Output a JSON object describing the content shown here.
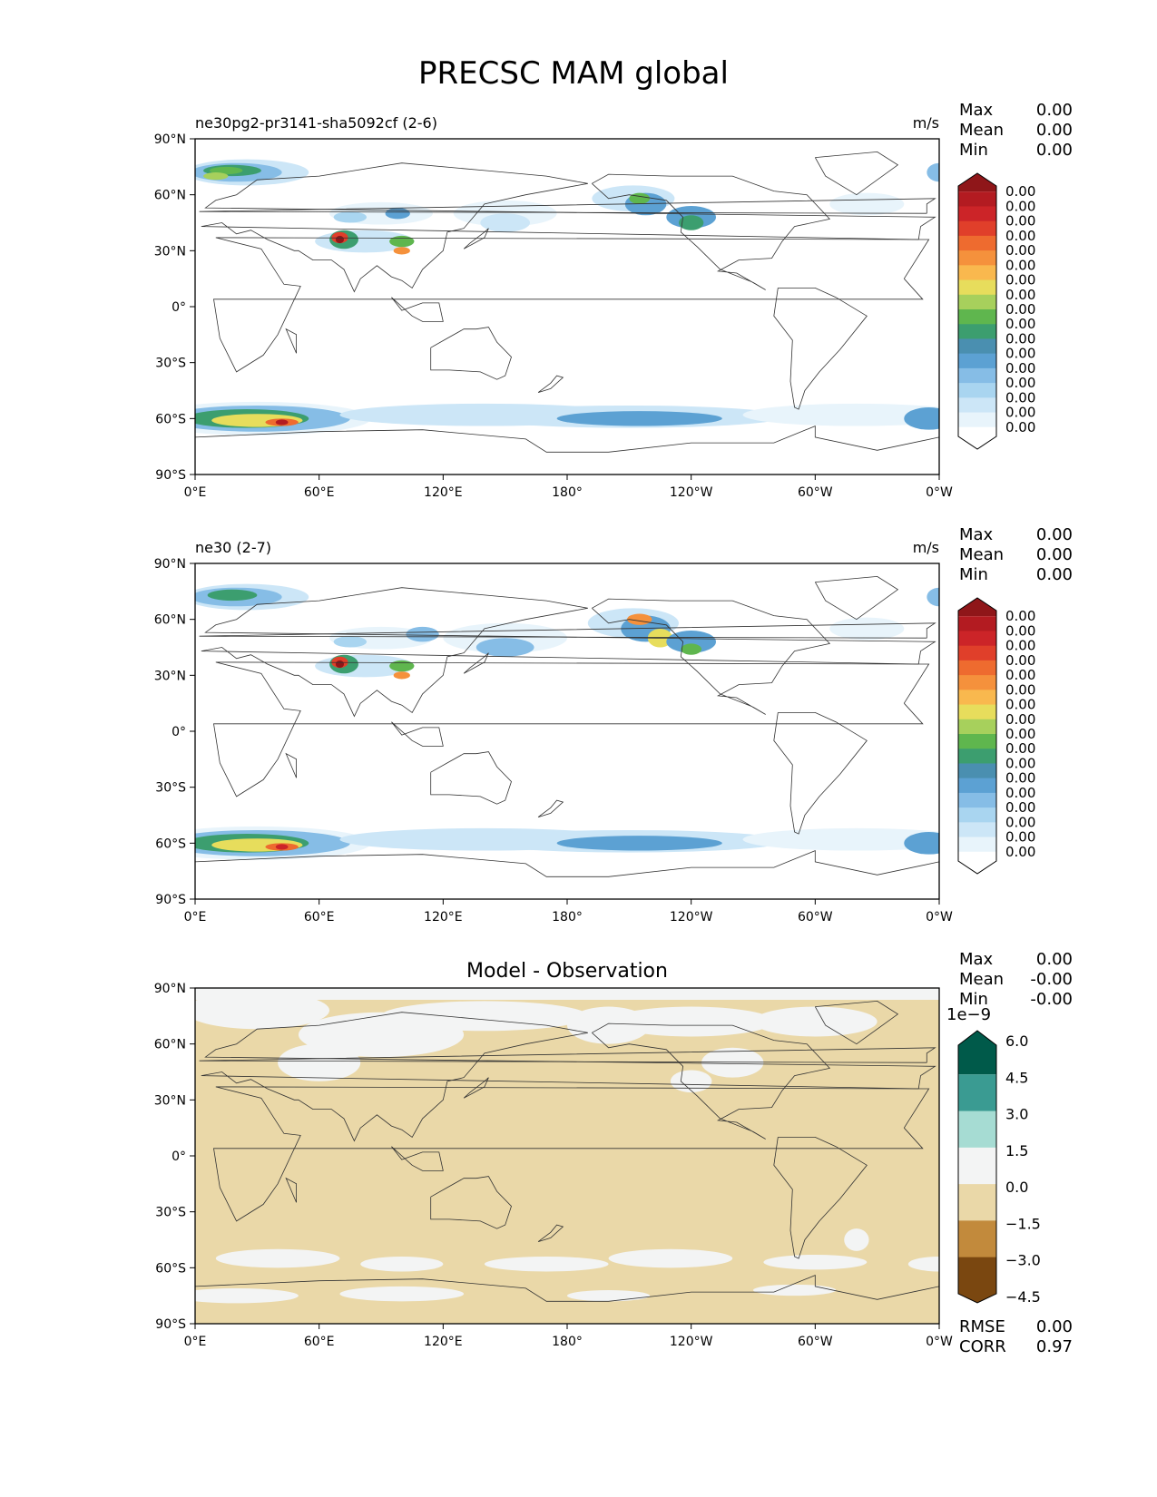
{
  "figure": {
    "title": "PRECSC MAM global"
  },
  "map_ticks": {
    "x": [
      "0°E",
      "60°E",
      "120°E",
      "180°",
      "120°W",
      "60°W",
      "0°W"
    ],
    "y": [
      "90°N",
      "60°N",
      "30°N",
      "0°",
      "30°S",
      "60°S",
      "90°S"
    ]
  },
  "stat_labels": {
    "max": "Max",
    "mean": "Mean",
    "min": "Min",
    "rmse": "RMSE",
    "corr": "CORR"
  },
  "panels": [
    {
      "left_title": "ne30pg2-pr3141-sha5092cf (2-6)",
      "units": "m/s",
      "center_title": "",
      "stats": {
        "max": "0.00",
        "mean": "0.00",
        "min": "0.00"
      }
    },
    {
      "left_title": "ne30 (2-7)",
      "units": "m/s",
      "center_title": "",
      "stats": {
        "max": "0.00",
        "mean": "0.00",
        "min": "0.00"
      }
    },
    {
      "left_title": "",
      "units": "",
      "center_title": "Model - Observation",
      "stats": {
        "max": "0.00",
        "mean": "-0.00",
        "min": "-0.00"
      },
      "extra_stats": {
        "rmse": "0.00",
        "corr": "0.97"
      }
    }
  ],
  "colorbars": {
    "sequential": {
      "colors": [
        "#8f1619",
        "#b31b21",
        "#cc2428",
        "#e03f2a",
        "#ee6b2f",
        "#f5913c",
        "#f9b84e",
        "#e7dd5c",
        "#a7d05c",
        "#5fb64e",
        "#3c9e6f",
        "#4a8fb0",
        "#5ca1d3",
        "#86bde6",
        "#a9d5f0",
        "#cce6f7",
        "#e8f4fb",
        "#ffffff"
      ],
      "labels": [
        "0.00",
        "0.00",
        "0.00",
        "0.00",
        "0.00",
        "0.00",
        "0.00",
        "0.00",
        "0.00",
        "0.00",
        "0.00",
        "0.00",
        "0.00",
        "0.00",
        "0.00",
        "0.00",
        "0.00"
      ]
    },
    "diverging": {
      "exponent": "1e−9",
      "colors": [
        "#005a4a",
        "#3a9b92",
        "#a6dcd3",
        "#f3f4f4",
        "#ead8a8",
        "#c28a3c",
        "#7a4710"
      ],
      "labels": [
        "6.0",
        "4.5",
        "3.0",
        "1.5",
        "0.0",
        "−1.5",
        "−3.0",
        "−4.5"
      ]
    }
  },
  "field_colors": {
    "ocean_land_bg": "#ffffff",
    "diff_bg": "#ead8a8",
    "diff_light": "#f3f4f4"
  }
}
